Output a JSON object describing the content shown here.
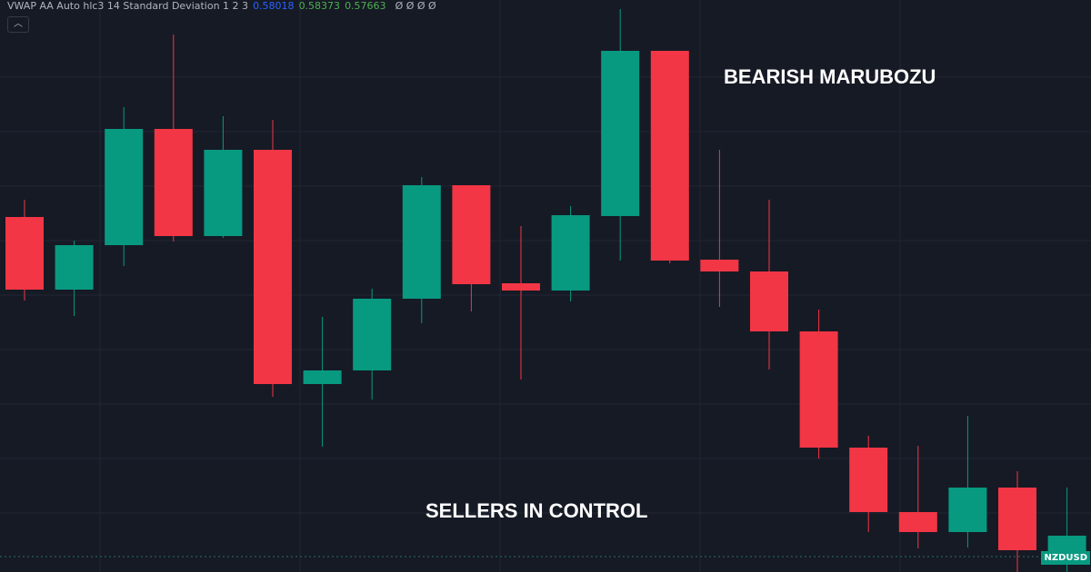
{
  "chart_data": {
    "type": "candlestick",
    "indicator": {
      "name": "VWAP AA Auto hlc3 14 Standard Deviation 1 2 3",
      "values": [
        {
          "text": "0.58018",
          "color": "#2962ff"
        },
        {
          "text": "0.58373",
          "color": "#4caf50"
        },
        {
          "text": "0.57663",
          "color": "#4caf50"
        }
      ],
      "empty": "Ø Ø Ø Ø"
    },
    "annotations": [
      "BEARISH MARUBOZU",
      "SELLERS IN CONTROL"
    ],
    "symbol": "NZDUSD",
    "up_color": "#089981",
    "down_color": "#f23645",
    "ylim": [
      0,
      630
    ],
    "open": [
      391,
      311,
      360,
      488,
      370,
      465,
      207,
      222,
      301,
      426,
      318,
      310,
      392,
      574,
      344,
      331,
      265,
      137,
      66,
      44,
      93,
      22
    ],
    "high": [
      410,
      365,
      512,
      592,
      502,
      498,
      281,
      312,
      435,
      426,
      381,
      403,
      620,
      574,
      465,
      410,
      289,
      150,
      139,
      172,
      111,
      93
    ],
    "low": [
      299,
      282,
      337,
      364,
      368,
      193,
      138,
      190,
      274,
      287,
      212,
      298,
      343,
      340,
      292,
      223,
      125,
      44,
      26,
      27,
      0,
      0
    ],
    "close": [
      311,
      360,
      488,
      370,
      465,
      207,
      222,
      301,
      426,
      317,
      310,
      393,
      574,
      343,
      331,
      265,
      137,
      66,
      44,
      93,
      24,
      40
    ]
  }
}
